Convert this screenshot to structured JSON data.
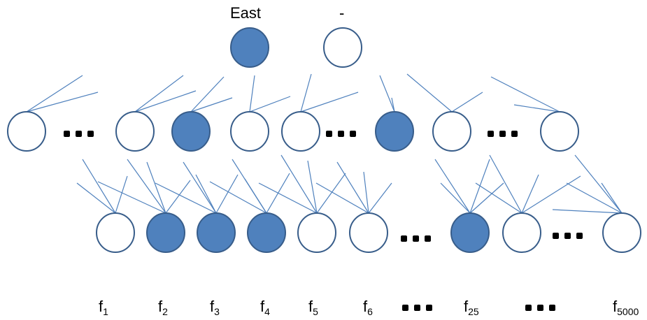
{
  "top_labels": [
    "East",
    "-"
  ],
  "top_nodes": [
    {
      "filled": true
    },
    {
      "filled": false
    }
  ],
  "middle_nodes": [
    {
      "filled": false
    },
    {
      "filled": false
    },
    {
      "filled": true
    },
    {
      "filled": false
    },
    {
      "filled": false
    },
    {
      "filled": true
    },
    {
      "filled": false
    },
    {
      "filled": false
    }
  ],
  "bottom_nodes": [
    {
      "filled": false
    },
    {
      "filled": true
    },
    {
      "filled": true
    },
    {
      "filled": true
    },
    {
      "filled": false
    },
    {
      "filled": false
    },
    {
      "filled": true
    },
    {
      "filled": false
    },
    {
      "filled": false
    }
  ],
  "feature_labels": [
    {
      "base": "f",
      "sub": "1"
    },
    {
      "base": "f",
      "sub": "2"
    },
    {
      "base": "f",
      "sub": "3"
    },
    {
      "base": "f",
      "sub": "4"
    },
    {
      "base": "f",
      "sub": "5"
    },
    {
      "base": "f",
      "sub": "6"
    },
    {
      "base": "f",
      "sub": "25"
    },
    {
      "base": "f",
      "sub": "5000"
    }
  ],
  "colors": {
    "node_fill": "#4f81bd",
    "node_stroke": "#385d8a",
    "edge": "#4f81bd",
    "empty_fill": "#ffffff"
  }
}
